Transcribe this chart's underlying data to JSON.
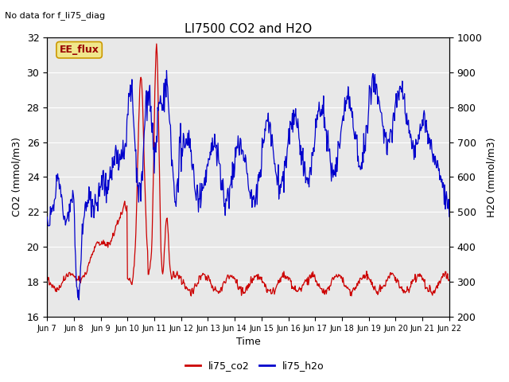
{
  "title": "LI7500 CO2 and H2O",
  "subtitle": "No data for f_li75_diag",
  "xlabel": "Time",
  "ylabel_left": "CO2 (mmol/m3)",
  "ylabel_right": "H2O (mmol/m3)",
  "ylim_left": [
    16,
    32
  ],
  "ylim_right": [
    200,
    1000
  ],
  "co2_color": "#cc0000",
  "h2o_color": "#0000cc",
  "bg_color": "#e8e8e8",
  "legend_labels": [
    "li75_co2",
    "li75_h2o"
  ],
  "annotation_text": "EE_flux",
  "tick_labels": [
    "Jun 7",
    "Jun 8",
    "Jun 9",
    "Jun 10",
    "Jun 11",
    "Jun 12",
    "Jun 13",
    "Jun 14",
    "Jun 15",
    "Jun 16",
    "Jun 17",
    "Jun 18",
    "Jun 19",
    "Jun 20",
    "Jun 21",
    "Jun 22"
  ]
}
